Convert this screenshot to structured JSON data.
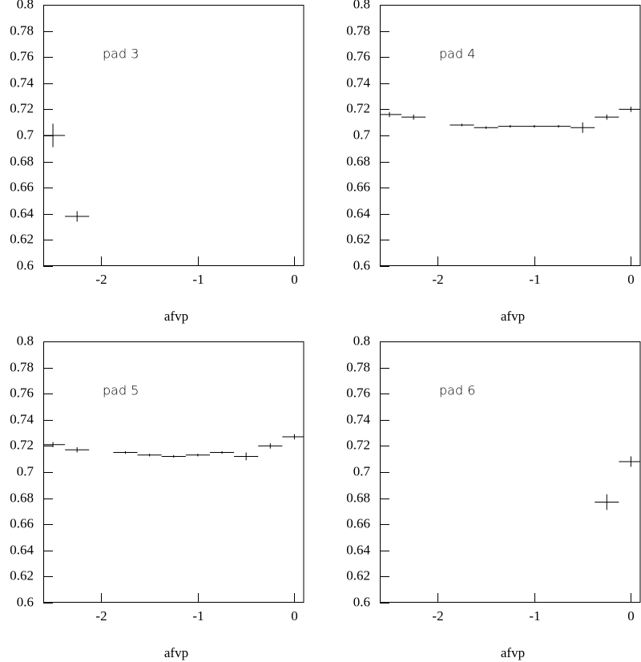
{
  "chart_data": [
    {
      "type": "scatter",
      "title": "pad 3",
      "xlabel": "afvp",
      "x": [
        -2.5,
        -2.25
      ],
      "values": [
        0.7,
        0.638
      ],
      "xerr": [
        0.125,
        0.125
      ],
      "yerr": [
        0.009,
        0.004
      ],
      "xlim": [
        -2.6,
        0.1
      ],
      "ylim": [
        0.6,
        0.8
      ],
      "xticks": [
        -2,
        -1,
        0
      ],
      "yticks": [
        0.6,
        0.62,
        0.64,
        0.66,
        0.68,
        0.7,
        0.72,
        0.74,
        0.76,
        0.78,
        0.8
      ],
      "color": "#000000"
    },
    {
      "type": "scatter",
      "title": "pad 4",
      "xlabel": "afvp",
      "x": [
        -2.5,
        -2.25,
        -1.75,
        -1.5,
        -1.25,
        -1.0,
        -0.75,
        -0.5,
        -0.25,
        0
      ],
      "values": [
        0.716,
        0.714,
        0.708,
        0.706,
        0.707,
        0.707,
        0.707,
        0.706,
        0.714,
        0.72
      ],
      "xerr": [
        0.125,
        0.125,
        0.125,
        0.125,
        0.125,
        0.125,
        0.125,
        0.125,
        0.125,
        0.125
      ],
      "yerr": [
        0.002,
        0.002,
        0.001,
        0.001,
        0.001,
        0.001,
        0.001,
        0.004,
        0.002,
        0.002
      ],
      "xlim": [
        -2.6,
        0.1
      ],
      "ylim": [
        0.6,
        0.8
      ],
      "xticks": [
        -2,
        -1,
        0
      ],
      "yticks": [
        0.6,
        0.62,
        0.64,
        0.66,
        0.68,
        0.7,
        0.72,
        0.74,
        0.76,
        0.78,
        0.8
      ],
      "color": "#000000"
    },
    {
      "type": "scatter",
      "title": "pad 5",
      "xlabel": "afvp",
      "x": [
        -2.5,
        -2.25,
        -1.75,
        -1.5,
        -1.25,
        -1.0,
        -0.75,
        -0.5,
        -0.25,
        0
      ],
      "values": [
        0.721,
        0.717,
        0.715,
        0.713,
        0.712,
        0.713,
        0.715,
        0.712,
        0.72,
        0.727
      ],
      "xerr": [
        0.125,
        0.125,
        0.125,
        0.125,
        0.125,
        0.125,
        0.125,
        0.125,
        0.125,
        0.125
      ],
      "yerr": [
        0.002,
        0.002,
        0.001,
        0.001,
        0.001,
        0.001,
        0.001,
        0.003,
        0.002,
        0.002
      ],
      "xlim": [
        -2.6,
        0.1
      ],
      "ylim": [
        0.6,
        0.8
      ],
      "xticks": [
        -2,
        -1,
        0
      ],
      "yticks": [
        0.6,
        0.62,
        0.64,
        0.66,
        0.68,
        0.7,
        0.72,
        0.74,
        0.76,
        0.78,
        0.8
      ],
      "color": "#000000"
    },
    {
      "type": "scatter",
      "title": "pad 6",
      "xlabel": "afvp",
      "x": [
        -0.25,
        0
      ],
      "values": [
        0.677,
        0.708
      ],
      "xerr": [
        0.125,
        0.125
      ],
      "yerr": [
        0.006,
        0.004
      ],
      "xlim": [
        -2.6,
        0.1
      ],
      "ylim": [
        0.6,
        0.8
      ],
      "xticks": [
        -2,
        -1,
        0
      ],
      "yticks": [
        0.6,
        0.62,
        0.64,
        0.66,
        0.68,
        0.7,
        0.72,
        0.74,
        0.76,
        0.78,
        0.8
      ],
      "color": "#000000"
    }
  ]
}
